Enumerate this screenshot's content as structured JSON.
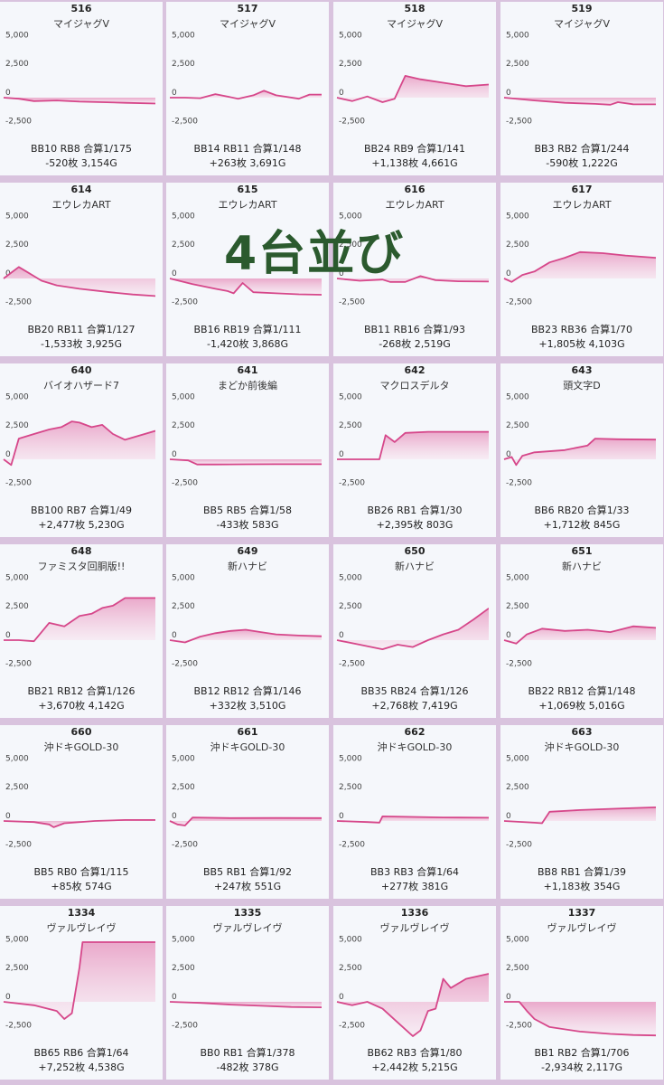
{
  "overlay_text": "4台並び",
  "colors": {
    "line": "#d6478a",
    "fill_top": "#e89bc2",
    "fill_bottom": "#f8e6f0",
    "background": "#d9c3de",
    "card": "#f5f7fb",
    "overlay": "#2b5a2e"
  },
  "chart_data": [
    {
      "type": "area",
      "number": "516",
      "name": "マイジャグV",
      "y_ticks": [
        "5,000",
        "2,500",
        "0",
        "-2,500"
      ],
      "ylim": [
        -3000,
        5200
      ],
      "x": [
        0,
        0.1,
        0.2,
        0.35,
        0.5,
        0.65,
        0.8,
        1
      ],
      "y": [
        0,
        -100,
        -300,
        -250,
        -350,
        -400,
        -450,
        -520
      ],
      "stat_line1": "BB10 RB8 合算1/175",
      "stat_line2": "-520枚 3,154G"
    },
    {
      "type": "area",
      "number": "517",
      "name": "マイジャグV",
      "y_ticks": [
        "5,000",
        "2,500",
        "0",
        "-2,500"
      ],
      "ylim": [
        -3000,
        5200
      ],
      "x": [
        0,
        0.1,
        0.2,
        0.3,
        0.45,
        0.55,
        0.62,
        0.7,
        0.85,
        0.92,
        1
      ],
      "y": [
        0,
        0,
        -50,
        300,
        -100,
        200,
        600,
        200,
        -100,
        263,
        263
      ],
      "stat_line1": "BB14 RB11 合算1/148",
      "stat_line2": "+263枚 3,691G"
    },
    {
      "type": "area",
      "number": "518",
      "name": "マイジャグV",
      "y_ticks": [
        "5,000",
        "2,500",
        "0",
        "-2,500"
      ],
      "ylim": [
        -3000,
        5200
      ],
      "x": [
        0,
        0.1,
        0.2,
        0.3,
        0.38,
        0.45,
        0.55,
        0.7,
        0.85,
        1
      ],
      "y": [
        0,
        -300,
        100,
        -400,
        -100,
        1900,
        1600,
        1300,
        1000,
        1138
      ],
      "stat_line1": "BB24 RB9 合算1/141",
      "stat_line2": "+1,138枚 4,661G"
    },
    {
      "type": "area",
      "number": "519",
      "name": "マイジャグV",
      "y_ticks": [
        "5,000",
        "2,500",
        "0",
        "-2,500"
      ],
      "ylim": [
        -3000,
        5200
      ],
      "x": [
        0,
        0.2,
        0.4,
        0.6,
        0.7,
        0.75,
        0.85,
        1
      ],
      "y": [
        0,
        -250,
        -450,
        -550,
        -620,
        -400,
        -580,
        -590
      ],
      "stat_line1": "BB3 RB2 合算1/244",
      "stat_line2": "-590枚 1,222G"
    },
    {
      "type": "area",
      "number": "614",
      "name": "エウレカART",
      "y_ticks": [
        "5,000",
        "2,500",
        "0",
        "-2,500"
      ],
      "ylim": [
        -3000,
        5200
      ],
      "x": [
        0,
        0.05,
        0.1,
        0.15,
        0.2,
        0.25,
        0.35,
        0.5,
        0.7,
        0.85,
        1
      ],
      "y": [
        0,
        500,
        1000,
        600,
        200,
        -200,
        -600,
        -900,
        -1200,
        -1400,
        -1533
      ],
      "stat_line1": "BB20 RB11 合算1/127",
      "stat_line2": "-1,533枚 3,925G"
    },
    {
      "type": "area",
      "number": "615",
      "name": "エウレカART",
      "y_ticks": [
        "5,000",
        "2,500",
        "0",
        "-2,500"
      ],
      "ylim": [
        -3000,
        5200
      ],
      "x": [
        0,
        0.15,
        0.3,
        0.38,
        0.42,
        0.48,
        0.55,
        0.7,
        0.85,
        1
      ],
      "y": [
        0,
        -500,
        -900,
        -1100,
        -1300,
        -400,
        -1200,
        -1300,
        -1380,
        -1420
      ],
      "stat_line1": "BB16 RB19 合算1/111",
      "stat_line2": "-1,420枚 3,868G"
    },
    {
      "type": "area",
      "number": "616",
      "name": "エウレカART",
      "y_ticks": [
        "5,000",
        "2,500",
        "0",
        "-2,500"
      ],
      "ylim": [
        -3000,
        5200
      ],
      "x": [
        0,
        0.15,
        0.3,
        0.35,
        0.45,
        0.55,
        0.65,
        0.8,
        1
      ],
      "y": [
        0,
        -200,
        -100,
        -300,
        -300,
        200,
        -150,
        -250,
        -268
      ],
      "stat_line1": "BB11 RB16 合算1/93",
      "stat_line2": "-268枚 2,519G"
    },
    {
      "type": "area",
      "number": "617",
      "name": "エウレカART",
      "y_ticks": [
        "5,000",
        "2,500",
        "0",
        "-2,500"
      ],
      "ylim": [
        -3000,
        5200
      ],
      "x": [
        0,
        0.05,
        0.12,
        0.2,
        0.3,
        0.4,
        0.5,
        0.65,
        0.8,
        1
      ],
      "y": [
        0,
        -300,
        300,
        600,
        1400,
        1800,
        2300,
        2200,
        2000,
        1805
      ],
      "stat_line1": "BB23 RB36 合算1/70",
      "stat_line2": "+1,805枚 4,103G"
    },
    {
      "type": "area",
      "number": "640",
      "name": "バイオハザード7",
      "y_ticks": [
        "5,000",
        "2,500",
        "0",
        "-2,500"
      ],
      "ylim": [
        -3000,
        5200
      ],
      "x": [
        0,
        0.05,
        0.1,
        0.2,
        0.3,
        0.38,
        0.45,
        0.5,
        0.58,
        0.65,
        0.72,
        0.8,
        1
      ],
      "y": [
        0,
        -500,
        1800,
        2200,
        2600,
        2800,
        3300,
        3200,
        2800,
        3000,
        2200,
        1700,
        2477
      ],
      "stat_line1": "BB100 RB7 合算1/49",
      "stat_line2": "+2,477枚 5,230G"
    },
    {
      "type": "area",
      "number": "641",
      "name": "まどか前後編",
      "y_ticks": [
        "5,000",
        "2,500",
        "0",
        "-2,500"
      ],
      "ylim": [
        -3000,
        5200
      ],
      "x": [
        0,
        0.12,
        0.18,
        0.3,
        0.5,
        0.7,
        1
      ],
      "y": [
        0,
        -100,
        -450,
        -450,
        -440,
        -433,
        -433
      ],
      "stat_line1": "BB5 RB5 合算1/58",
      "stat_line2": "-433枚 583G"
    },
    {
      "type": "area",
      "number": "642",
      "name": "マクロスデルタ",
      "y_ticks": [
        "5,000",
        "2,500",
        "0",
        "-2,500"
      ],
      "ylim": [
        -3000,
        5200
      ],
      "x": [
        0,
        0.2,
        0.28,
        0.32,
        0.38,
        0.45,
        0.6,
        1
      ],
      "y": [
        0,
        0,
        0,
        2100,
        1500,
        2300,
        2395,
        2395
      ],
      "stat_line1": "BB26 RB1 合算1/30",
      "stat_line2": "+2,395枚 803G"
    },
    {
      "type": "area",
      "number": "643",
      "name": "頭文字D",
      "y_ticks": [
        "5,000",
        "2,500",
        "0",
        "-2,500"
      ],
      "ylim": [
        -3000,
        5200
      ],
      "x": [
        0,
        0.05,
        0.08,
        0.12,
        0.2,
        0.4,
        0.55,
        0.6,
        0.75,
        1
      ],
      "y": [
        0,
        200,
        -500,
        300,
        600,
        800,
        1200,
        1800,
        1750,
        1712
      ],
      "stat_line1": "BB6 RB20 合算1/33",
      "stat_line2": "+1,712枚 845G"
    },
    {
      "type": "area",
      "number": "648",
      "name": "ファミスタ回胴版!!",
      "y_ticks": [
        "5,000",
        "2,500",
        "0",
        "-2,500"
      ],
      "ylim": [
        -3000,
        5200
      ],
      "x": [
        0,
        0.1,
        0.2,
        0.3,
        0.4,
        0.5,
        0.58,
        0.65,
        0.72,
        0.8,
        1
      ],
      "y": [
        0,
        0,
        -100,
        1500,
        1200,
        2100,
        2300,
        2800,
        3000,
        3670,
        3670
      ],
      "stat_line1": "BB21 RB12 合算1/126",
      "stat_line2": "+3,670枚 4,142G"
    },
    {
      "type": "area",
      "number": "649",
      "name": "新ハナビ",
      "y_ticks": [
        "5,000",
        "2,500",
        "0",
        "-2,500"
      ],
      "ylim": [
        -3000,
        5200
      ],
      "x": [
        0,
        0.1,
        0.2,
        0.3,
        0.4,
        0.5,
        0.6,
        0.7,
        0.85,
        1
      ],
      "y": [
        0,
        -200,
        300,
        600,
        800,
        900,
        700,
        500,
        400,
        332
      ],
      "stat_line1": "BB12 RB12 合算1/146",
      "stat_line2": "+332枚 3,510G"
    },
    {
      "type": "area",
      "number": "650",
      "name": "新ハナビ",
      "y_ticks": [
        "5,000",
        "2,500",
        "0",
        "-2,500"
      ],
      "ylim": [
        -3000,
        5200
      ],
      "x": [
        0,
        0.15,
        0.3,
        0.4,
        0.5,
        0.6,
        0.7,
        0.8,
        0.9,
        1
      ],
      "y": [
        0,
        -400,
        -800,
        -400,
        -600,
        0,
        500,
        900,
        1800,
        2768
      ],
      "stat_line1": "BB35 RB24 合算1/126",
      "stat_line2": "+2,768枚 7,419G"
    },
    {
      "type": "area",
      "number": "651",
      "name": "新ハナビ",
      "y_ticks": [
        "5,000",
        "2,500",
        "0",
        "-2,500"
      ],
      "ylim": [
        -3000,
        5200
      ],
      "x": [
        0,
        0.08,
        0.15,
        0.25,
        0.4,
        0.55,
        0.7,
        0.85,
        1
      ],
      "y": [
        0,
        -300,
        500,
        1000,
        800,
        900,
        700,
        1200,
        1069
      ],
      "stat_line1": "BB22 RB12 合算1/148",
      "stat_line2": "+1,069枚 5,016G"
    },
    {
      "type": "area",
      "number": "660",
      "name": "沖ドキGOLD-30",
      "y_ticks": [
        "5,000",
        "2,500",
        "0",
        "-2,500"
      ],
      "ylim": [
        -3000,
        5200
      ],
      "x": [
        0,
        0.2,
        0.3,
        0.33,
        0.4,
        0.6,
        0.8,
        1
      ],
      "y": [
        0,
        -100,
        -300,
        -550,
        -200,
        0,
        80,
        85
      ],
      "stat_line1": "BB5 RB0 合算1/115",
      "stat_line2": "+85枚 574G"
    },
    {
      "type": "area",
      "number": "661",
      "name": "沖ドキGOLD-30",
      "y_ticks": [
        "5,000",
        "2,500",
        "0",
        "-2,500"
      ],
      "ylim": [
        -3000,
        5200
      ],
      "x": [
        0,
        0.05,
        0.1,
        0.15,
        0.4,
        0.7,
        1
      ],
      "y": [
        0,
        -300,
        -400,
        300,
        250,
        260,
        247
      ],
      "stat_line1": "BB5 RB1 合算1/92",
      "stat_line2": "+247枚 551G"
    },
    {
      "type": "area",
      "number": "662",
      "name": "沖ドキGOLD-30",
      "y_ticks": [
        "5,000",
        "2,500",
        "0",
        "-2,500"
      ],
      "ylim": [
        -3000,
        5200
      ],
      "x": [
        0,
        0.2,
        0.28,
        0.3,
        0.5,
        0.7,
        1
      ],
      "y": [
        0,
        -100,
        -150,
        400,
        350,
        300,
        277
      ],
      "stat_line1": "BB3 RB3 合算1/64",
      "stat_line2": "+277枚 381G"
    },
    {
      "type": "area",
      "number": "663",
      "name": "沖ドキGOLD-30",
      "y_ticks": [
        "5,000",
        "2,500",
        "0",
        "-2,500"
      ],
      "ylim": [
        -3000,
        5200
      ],
      "x": [
        0,
        0.2,
        0.25,
        0.3,
        0.5,
        0.8,
        1
      ],
      "y": [
        0,
        -150,
        -200,
        800,
        950,
        1100,
        1183
      ],
      "stat_line1": "BB8 RB1 合算1/39",
      "stat_line2": "+1,183枚 354G"
    },
    {
      "type": "area",
      "number": "1334",
      "name": "ヴァルヴレイヴ",
      "y_ticks": [
        "5,000",
        "2,500",
        "0",
        "-2,500"
      ],
      "ylim": [
        -3000,
        5200
      ],
      "x": [
        0,
        0.2,
        0.35,
        0.4,
        0.45,
        0.5,
        0.52,
        1
      ],
      "y": [
        0,
        -300,
        -800,
        -1500,
        -1000,
        3000,
        5200,
        5200
      ],
      "stat_line1": "BB65 RB6 合算1/64",
      "stat_line2": "+7,252枚 4,538G"
    },
    {
      "type": "area",
      "number": "1335",
      "name": "ヴァルヴレイヴ",
      "y_ticks": [
        "5,000",
        "2,500",
        "0",
        "-2,500"
      ],
      "ylim": [
        -3000,
        5200
      ],
      "x": [
        0,
        0.2,
        0.4,
        0.6,
        0.8,
        1
      ],
      "y": [
        0,
        -100,
        -250,
        -350,
        -450,
        -482
      ],
      "stat_line1": "BB0 RB1 合算1/378",
      "stat_line2": "-482枚 378G"
    },
    {
      "type": "area",
      "number": "1336",
      "name": "ヴァルヴレイヴ",
      "y_ticks": [
        "5,000",
        "2,500",
        "0",
        "-2,500"
      ],
      "ylim": [
        -3000,
        5200
      ],
      "x": [
        0,
        0.1,
        0.2,
        0.3,
        0.4,
        0.5,
        0.55,
        0.6,
        0.65,
        0.7,
        0.75,
        0.85,
        1
      ],
      "y": [
        0,
        -300,
        0,
        -600,
        -1800,
        -3000,
        -2500,
        -800,
        -600,
        2000,
        1200,
        2000,
        2442
      ],
      "stat_line1": "BB62 RB3 合算1/80",
      "stat_line2": "+2,442枚 5,215G"
    },
    {
      "type": "area",
      "number": "1337",
      "name": "ヴァルヴレイヴ",
      "y_ticks": [
        "5,000",
        "2,500",
        "0",
        "-2,500"
      ],
      "ylim": [
        -3000,
        5200
      ],
      "x": [
        0,
        0.1,
        0.15,
        0.2,
        0.3,
        0.5,
        0.7,
        0.85,
        1
      ],
      "y": [
        0,
        0,
        -800,
        -1500,
        -2200,
        -2600,
        -2800,
        -2900,
        -2934
      ],
      "stat_line1": "BB1 RB2 合算1/706",
      "stat_line2": "-2,934枚 2,117G"
    }
  ]
}
